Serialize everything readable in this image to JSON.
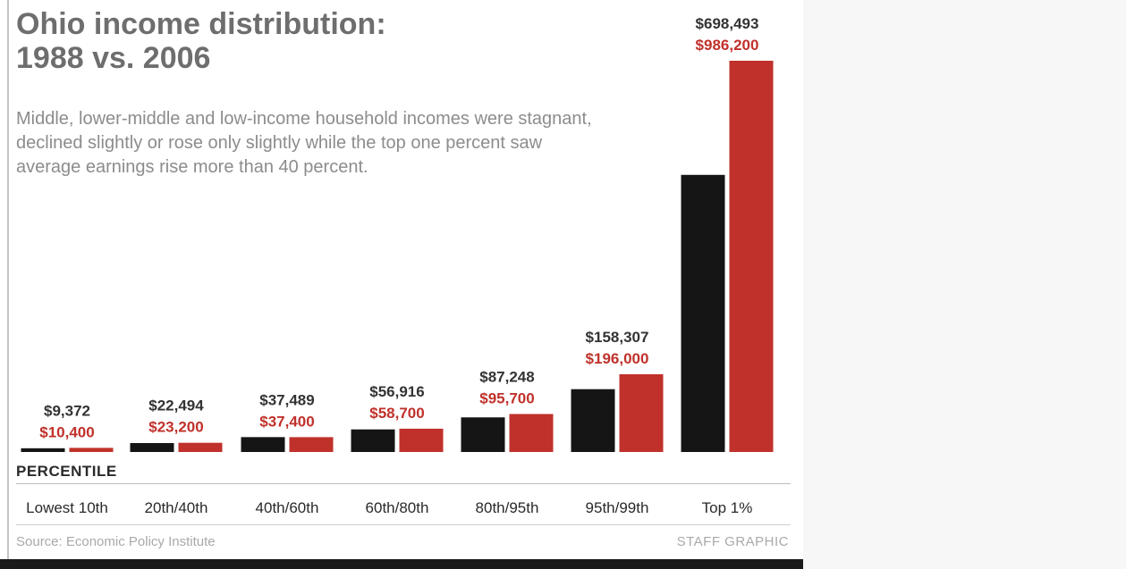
{
  "title_line1": "Ohio income distribution:",
  "title_line2": "1988 vs. 2006",
  "subtitle": "Middle, lower-middle and low-income household incomes were stagnant, declined slightly or rose only slightly while the top one percent saw average earnings rise more than 40 percent.",
  "percentile_heading": "PERCENTILE",
  "source": "Source: Economic Policy Institute",
  "credit": "STAFF GRAPHIC",
  "colors": {
    "y1988": "#151515",
    "y2006": "#c0312b"
  },
  "chart_data": {
    "type": "bar",
    "categories": [
      "Lowest 10th",
      "20th/40th",
      "40th/60th",
      "60th/80th",
      "80th/95th",
      "95th/99th",
      "Top 1%"
    ],
    "series": [
      {
        "values": [
          9372,
          22494,
          37489,
          56916,
          87248,
          158307,
          698493
        ],
        "labels": [
          "$9,372",
          "$22,494",
          "$37,489",
          "$56,916",
          "$87,248",
          "$158,307",
          "$698,493"
        ]
      },
      {
        "values": [
          10400,
          23200,
          37400,
          58700,
          95700,
          196000,
          986200
        ],
        "labels": [
          "$10,400",
          "$23,200",
          "$37,400",
          "$58,700",
          "$95,700",
          "$196,000",
          "$986,200"
        ]
      }
    ],
    "ylim": [
      0,
      986200
    ]
  }
}
